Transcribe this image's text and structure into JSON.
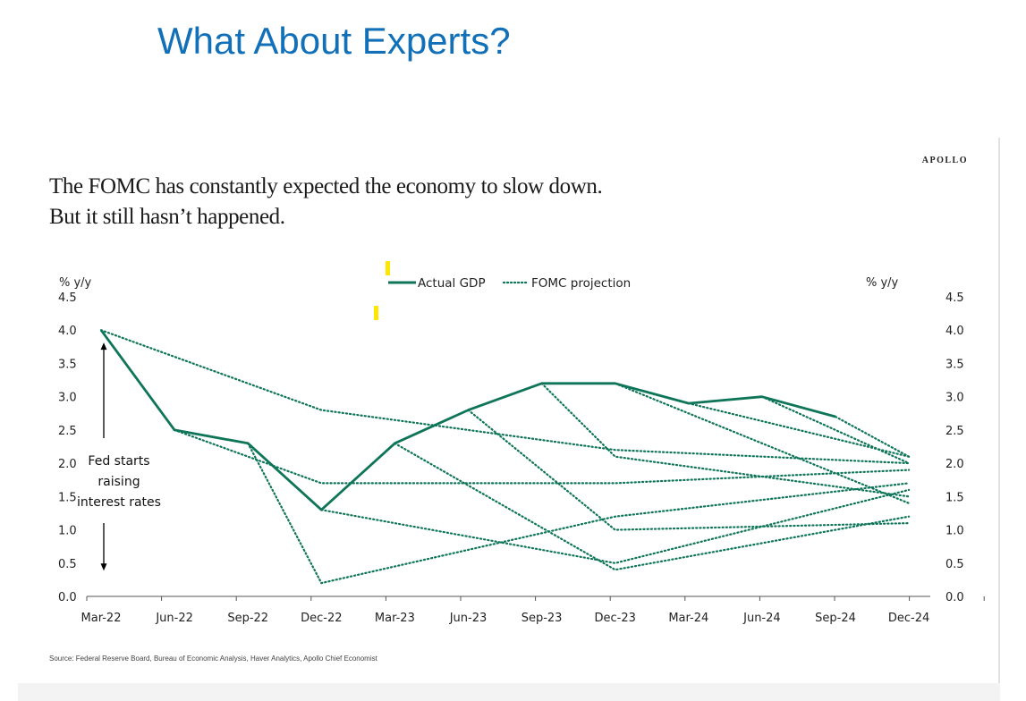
{
  "slide": {
    "title": "What About Experts?"
  },
  "panel": {
    "brand": "APOLLO",
    "headline_line1": "The FOMC has constantly expected the economy to slow down.",
    "headline_line2": "But it still hasn’t happened.",
    "source": "Source: Federal Reserve Board, Bureau of Economic Analysis, Haver Analytics, Apollo Chief Economist"
  },
  "colors": {
    "title_blue": "#1170b8",
    "series_green": "#0f7559",
    "highlight_yellow": "#ffe600"
  },
  "chart_data": {
    "type": "line",
    "title": "The FOMC has constantly expected the economy to slow down. But it still hasn’t happened.",
    "xlabel": "",
    "ylabel": "% y/y",
    "ylabel_right": "% y/y",
    "ylim": [
      0,
      4.5
    ],
    "yticks": [
      "0.0",
      "0.5",
      "1.0",
      "1.5",
      "2.0",
      "2.5",
      "3.0",
      "3.5",
      "4.0",
      "4.5"
    ],
    "grid": false,
    "legend_position": "top-center",
    "categories": [
      "Mar-22",
      "Jun-22",
      "Sep-22",
      "Dec-22",
      "Mar-23",
      "Jun-23",
      "Sep-23",
      "Dec-23",
      "Mar-24",
      "Jun-24",
      "Sep-24",
      "Dec-24"
    ],
    "series": [
      {
        "name": "Actual GDP",
        "style": "solid",
        "points": [
          [
            0,
            4.0
          ],
          [
            1,
            2.5
          ],
          [
            2,
            2.3
          ],
          [
            3,
            1.3
          ],
          [
            4,
            2.3
          ],
          [
            5,
            2.8
          ],
          [
            6,
            3.2
          ],
          [
            7,
            3.2
          ],
          [
            8,
            2.9
          ],
          [
            9,
            3.0
          ],
          [
            10,
            2.7
          ]
        ]
      },
      {
        "name": "FOMC projection (Mar-22)",
        "style": "dotted",
        "points": [
          [
            0,
            4.0
          ],
          [
            3,
            2.8
          ],
          [
            7,
            2.2
          ],
          [
            11,
            2.0
          ]
        ]
      },
      {
        "name": "FOMC projection (Jun-22)",
        "style": "dotted",
        "points": [
          [
            1,
            2.5
          ],
          [
            3,
            1.7
          ],
          [
            7,
            1.7
          ],
          [
            11,
            1.9
          ]
        ]
      },
      {
        "name": "FOMC projection (Sep-22)",
        "style": "dotted",
        "points": [
          [
            2,
            2.3
          ],
          [
            3,
            0.2
          ],
          [
            7,
            1.2
          ],
          [
            11,
            1.7
          ]
        ]
      },
      {
        "name": "FOMC projection (Dec-22)",
        "style": "dotted",
        "points": [
          [
            3,
            1.3
          ],
          [
            7,
            0.5
          ],
          [
            11,
            1.6
          ]
        ]
      },
      {
        "name": "FOMC projection (Mar-23)",
        "style": "dotted",
        "points": [
          [
            4,
            2.3
          ],
          [
            7,
            0.4
          ],
          [
            11,
            1.2
          ]
        ]
      },
      {
        "name": "FOMC projection (Jun-23)",
        "style": "dotted",
        "points": [
          [
            5,
            2.8
          ],
          [
            7,
            1.0
          ],
          [
            11,
            1.1
          ]
        ]
      },
      {
        "name": "FOMC projection (Sep-23)",
        "style": "dotted",
        "points": [
          [
            6,
            3.2
          ],
          [
            7,
            2.1
          ],
          [
            11,
            1.5
          ]
        ]
      },
      {
        "name": "FOMC projection (Dec-23)",
        "style": "dotted",
        "points": [
          [
            7,
            3.2
          ],
          [
            11,
            1.4
          ]
        ]
      },
      {
        "name": "FOMC projection (Mar-24)",
        "style": "dotted",
        "points": [
          [
            8,
            2.9
          ],
          [
            11,
            2.1
          ]
        ]
      },
      {
        "name": "FOMC projection (Jun-24)",
        "style": "dotted",
        "points": [
          [
            9,
            3.0
          ],
          [
            11,
            2.0
          ]
        ]
      },
      {
        "name": "FOMC projection (Sep-24)",
        "style": "dotted",
        "points": [
          [
            10,
            2.7
          ],
          [
            11,
            2.1
          ]
        ]
      }
    ],
    "legend": [
      {
        "label": "Actual GDP",
        "style": "solid"
      },
      {
        "label": "FOMC projection",
        "style": "dotted"
      }
    ],
    "annotations": [
      {
        "text_lines": [
          "Fed starts",
          "raising",
          "interest rates"
        ],
        "at_category": "Mar-22",
        "arrow_range": [
          0.4,
          3.8
        ]
      }
    ]
  }
}
